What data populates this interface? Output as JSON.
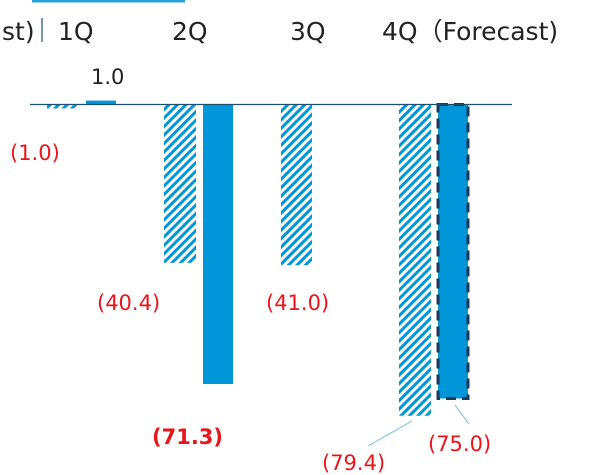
{
  "chart_data": {
    "type": "bar",
    "header_fragment": "st)",
    "categories": [
      "1Q",
      "2Q",
      "3Q",
      "4Q（Forecast)"
    ],
    "series": [
      {
        "pattern": "hatched",
        "values": [
          -1.0,
          -40.4,
          -41.0,
          -79.4
        ]
      },
      {
        "pattern": "solid",
        "values": [
          1.0,
          -71.3,
          null,
          -75.0
        ]
      }
    ],
    "value_labels": {
      "hatched": [
        "(1.0)",
        "(40.4)",
        "(41.0)",
        "(79.4)"
      ],
      "solid": [
        "1.0",
        "(71.3)",
        "",
        "(75.0)"
      ]
    },
    "forecast_bar_dashed": true,
    "emphasized_label": "(71.3)",
    "colors": {
      "bar": "#0096d8",
      "negative_label": "#e8161c",
      "positive_label": "#222222",
      "axis": "#1b4f6e",
      "forecast_border": "#1b3a55",
      "leader_line": "#88c9e8",
      "header_rule": "#2a9fd6"
    },
    "grid": false,
    "legend": "none"
  }
}
